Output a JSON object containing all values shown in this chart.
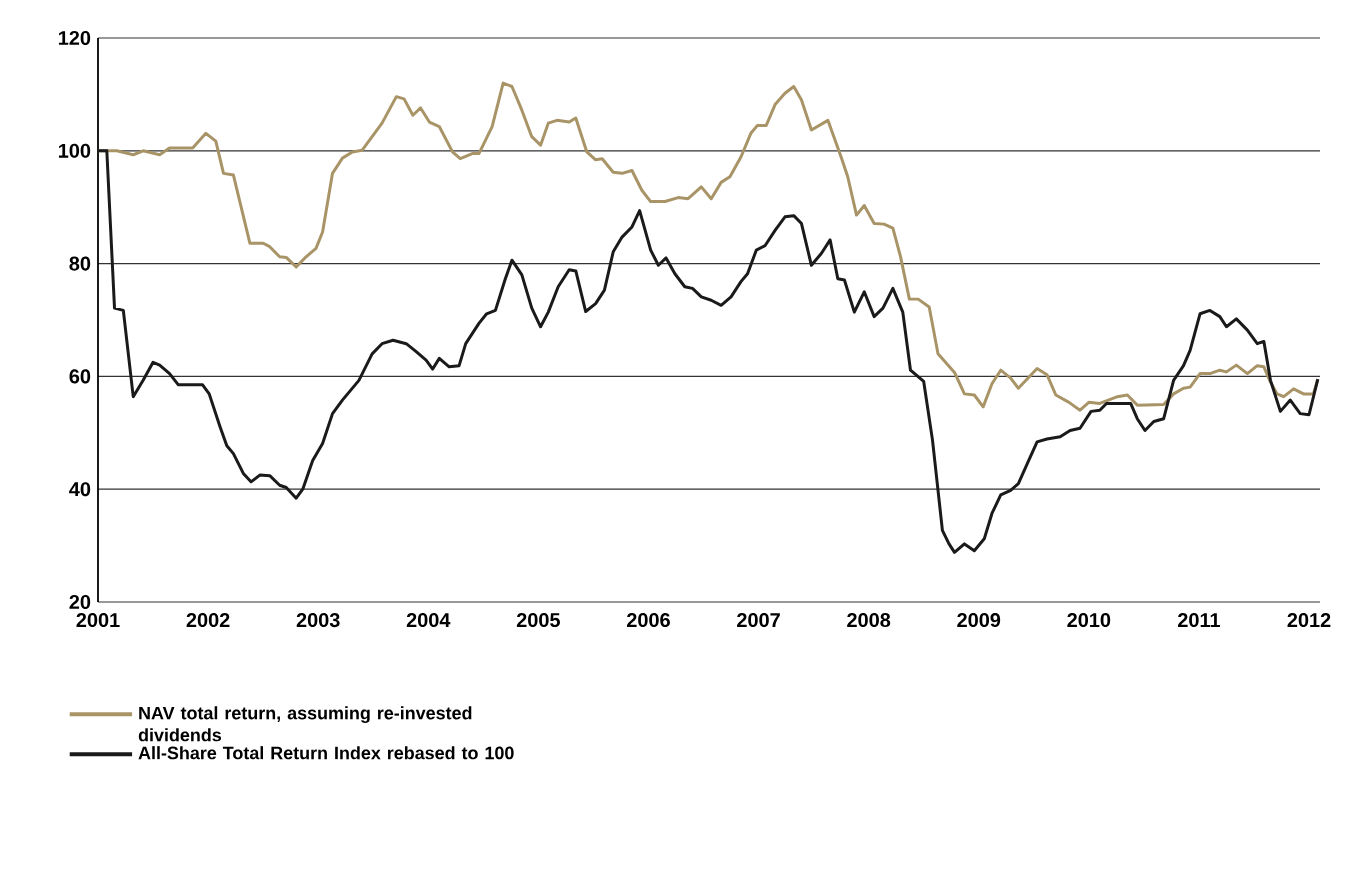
{
  "chart_data": {
    "type": "line",
    "xlim": [
      2001,
      2012.1
    ],
    "xticks": [
      2001,
      2002,
      2003,
      2004,
      2005,
      2006,
      2007,
      2008,
      2009,
      2010,
      2011,
      2012
    ],
    "ylim": [
      20,
      120
    ],
    "yticks": [
      20,
      40,
      60,
      80,
      100,
      120
    ],
    "grid": "y",
    "legend": "bottom",
    "marker": "none",
    "line_style": "solid",
    "series": [
      {
        "name": "NAV total return, assuming re-invested dividends",
        "color": "#a89467",
        "x": [
          2001.0,
          2001.17,
          2001.32,
          2001.41,
          2001.56,
          2001.65,
          2001.86,
          2001.98,
          2002.07,
          2002.14,
          2002.23,
          2002.38,
          2002.5,
          2002.56,
          2002.65,
          2002.71,
          2002.8,
          2002.89,
          2002.98,
          2003.04,
          2003.13,
          2003.22,
          2003.31,
          2003.4,
          2003.58,
          2003.71,
          2003.78,
          2003.86,
          2003.93,
          2004.01,
          2004.1,
          2004.22,
          2004.29,
          2004.4,
          2004.46,
          2004.58,
          2004.68,
          2004.76,
          2004.85,
          2004.94,
          2005.02,
          2005.09,
          2005.17,
          2005.28,
          2005.34,
          2005.44,
          2005.52,
          2005.58,
          2005.68,
          2005.76,
          2005.85,
          2005.94,
          2006.02,
          2006.15,
          2006.27,
          2006.36,
          2006.48,
          2006.57,
          2006.66,
          2006.74,
          2006.84,
          2006.93,
          2006.99,
          2007.07,
          2007.15,
          2007.24,
          2007.32,
          2007.39,
          2007.48,
          2007.63,
          2007.75,
          2007.81,
          2007.89,
          2007.96,
          2008.05,
          2008.14,
          2008.22,
          2008.29,
          2008.37,
          2008.45,
          2008.55,
          2008.63,
          2008.78,
          2008.87,
          2008.96,
          2009.04,
          2009.12,
          2009.2,
          2009.29,
          2009.36,
          2009.53,
          2009.62,
          2009.7,
          2009.82,
          2009.92,
          2010.0,
          2010.1,
          2010.26,
          2010.35,
          2010.44,
          2010.68,
          2010.77,
          2010.86,
          2010.92,
          2011.01,
          2011.1,
          2011.19,
          2011.25,
          2011.34,
          2011.44,
          2011.53,
          2011.59,
          2011.65,
          2011.71,
          2011.77,
          2011.86,
          2011.95,
          2012.04,
          2012.08
        ],
        "values": [
          100.0,
          100.0,
          99.3,
          100.0,
          99.3,
          100.5,
          100.5,
          103.1,
          101.7,
          96.0,
          95.7,
          83.6,
          83.6,
          83.0,
          81.2,
          81.1,
          79.4,
          81.2,
          82.7,
          85.6,
          96.0,
          98.7,
          99.8,
          100.1,
          104.9,
          109.6,
          109.2,
          106.3,
          107.6,
          105.1,
          104.3,
          99.8,
          98.6,
          99.5,
          99.5,
          104.3,
          112.0,
          111.4,
          107.2,
          102.5,
          101.0,
          104.9,
          105.4,
          105.1,
          105.8,
          99.8,
          98.4,
          98.6,
          96.2,
          96.0,
          96.5,
          93.0,
          91.0,
          91.0,
          91.7,
          91.5,
          93.6,
          91.5,
          94.4,
          95.4,
          98.9,
          103.1,
          104.5,
          104.5,
          108.2,
          110.2,
          111.4,
          109.0,
          103.7,
          105.4,
          98.9,
          95.4,
          88.6,
          90.3,
          87.1,
          87.0,
          86.3,
          81.2,
          73.7,
          73.7,
          72.3,
          64.0,
          60.7,
          56.9,
          56.7,
          54.6,
          58.7,
          61.1,
          59.7,
          57.9,
          61.4,
          60.3,
          56.7,
          55.4,
          54.0,
          55.4,
          55.2,
          56.4,
          56.7,
          54.9,
          55.0,
          56.9,
          57.9,
          58.1,
          60.5,
          60.5,
          61.1,
          60.8,
          62.0,
          60.5,
          61.9,
          61.7,
          59.0,
          56.9,
          56.4,
          57.8,
          56.9,
          56.9,
          59.5
        ]
      },
      {
        "name": "All-Share Total Return Index rebased to 100",
        "color": "#1a1a1a",
        "x": [
          2001.0,
          2001.08,
          2001.15,
          2001.23,
          2001.32,
          2001.41,
          2001.5,
          2001.56,
          2001.65,
          2001.73,
          2001.95,
          2002.01,
          2002.11,
          2002.17,
          2002.23,
          2002.32,
          2002.39,
          2002.47,
          2002.56,
          2002.65,
          2002.71,
          2002.8,
          2002.86,
          2002.95,
          2003.04,
          2003.13,
          2003.22,
          2003.37,
          2003.49,
          2003.58,
          2003.68,
          2003.8,
          2003.89,
          2003.98,
          2004.04,
          2004.1,
          2004.19,
          2004.28,
          2004.34,
          2004.46,
          2004.53,
          2004.61,
          2004.7,
          2004.76,
          2004.85,
          2004.94,
          2005.02,
          2005.09,
          2005.18,
          2005.28,
          2005.34,
          2005.43,
          2005.52,
          2005.6,
          2005.68,
          2005.76,
          2005.85,
          2005.92,
          2006.02,
          2006.09,
          2006.16,
          2006.24,
          2006.33,
          2006.4,
          2006.48,
          2006.57,
          2006.66,
          2006.75,
          2006.84,
          2006.9,
          2006.98,
          2007.06,
          2007.15,
          2007.24,
          2007.32,
          2007.39,
          2007.48,
          2007.57,
          2007.65,
          2007.72,
          2007.78,
          2007.87,
          2007.96,
          2008.05,
          2008.13,
          2008.22,
          2008.31,
          2008.38,
          2008.5,
          2008.58,
          2008.67,
          2008.73,
          2008.78,
          2008.87,
          2008.96,
          2009.05,
          2009.12,
          2009.2,
          2009.29,
          2009.36,
          2009.44,
          2009.53,
          2009.62,
          2009.74,
          2009.83,
          2009.92,
          2010.02,
          2010.1,
          2010.16,
          2010.38,
          2010.44,
          2010.51,
          2010.59,
          2010.68,
          2010.77,
          2010.86,
          2010.92,
          2011.01,
          2011.1,
          2011.19,
          2011.25,
          2011.34,
          2011.44,
          2011.53,
          2011.59,
          2011.65,
          2011.74,
          2011.83,
          2011.92,
          2012.0,
          2012.08
        ],
        "values": [
          100.0,
          100.0,
          72.1,
          71.7,
          56.4,
          59.3,
          62.5,
          62.0,
          60.5,
          58.5,
          58.5,
          56.9,
          51.0,
          47.7,
          46.3,
          42.8,
          41.3,
          42.5,
          42.4,
          40.7,
          40.3,
          38.4,
          40.0,
          45.1,
          48.1,
          53.4,
          55.8,
          59.3,
          64.0,
          65.8,
          66.4,
          65.8,
          64.4,
          62.9,
          61.3,
          63.2,
          61.7,
          61.9,
          65.8,
          69.4,
          71.1,
          71.7,
          77.3,
          80.6,
          78.0,
          72.1,
          68.8,
          71.4,
          75.9,
          78.9,
          78.7,
          71.5,
          72.9,
          75.3,
          82.1,
          84.7,
          86.5,
          89.4,
          82.4,
          79.7,
          81.0,
          78.2,
          75.9,
          75.6,
          74.1,
          73.5,
          72.6,
          74.1,
          76.8,
          78.2,
          82.4,
          83.2,
          85.9,
          88.3,
          88.5,
          87.1,
          79.7,
          81.8,
          84.2,
          77.3,
          77.1,
          71.4,
          75.0,
          70.6,
          72.1,
          75.6,
          71.4,
          61.1,
          59.1,
          48.7,
          32.7,
          30.3,
          28.8,
          30.3,
          29.1,
          31.2,
          35.7,
          39.0,
          39.8,
          41.0,
          44.5,
          48.4,
          48.9,
          49.3,
          50.4,
          50.8,
          53.8,
          54.0,
          55.2,
          55.2,
          52.5,
          50.4,
          52.0,
          52.5,
          59.3,
          61.9,
          64.6,
          71.1,
          71.7,
          70.6,
          68.8,
          70.2,
          68.2,
          65.8,
          66.2,
          59.3,
          53.8,
          55.8,
          53.4,
          53.2,
          59.5
        ]
      }
    ]
  }
}
